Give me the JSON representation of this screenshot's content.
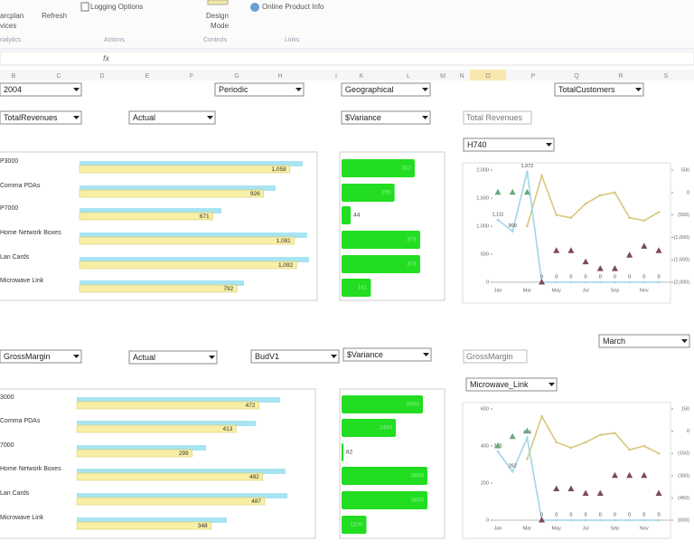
{
  "ribbon": {
    "items": [
      "arcplan",
      "vices",
      "Refresh",
      "Logging Options",
      "Design",
      "Mode",
      "Online Product Info"
    ],
    "groups": [
      "nalytics",
      "Actions",
      "Controls",
      "Links"
    ]
  },
  "formula_bar": {
    "fx": "fx"
  },
  "column_headers": [
    "B",
    "C",
    "D",
    "E",
    "F",
    "G",
    "H",
    "I",
    "K",
    "L",
    "M",
    "N",
    "O",
    "P",
    "Q",
    "R",
    "S"
  ],
  "panels": [
    {
      "dropdowns": [
        "2004",
        "Periodic",
        "Geographical",
        "TotalCustomers",
        "TotalRevenues",
        "Actual",
        "$Variance",
        "H740"
      ],
      "textbox": "Total Revenues",
      "rows": [
        {
          "label": "P3000",
          "value": 1058,
          "value_label": "1,058",
          "compare": 1123,
          "variance": 352
        },
        {
          "label": "Comma PDAs",
          "value": 926,
          "compare": 986,
          "variance": 255
        },
        {
          "label": "P7000",
          "value": 671,
          "compare": 714,
          "variance": 44
        },
        {
          "label": "Home Network Boxes",
          "value": 1081,
          "value_label": "1,081",
          "compare": 1145,
          "variance": 378
        },
        {
          "label": "Lan Cards",
          "value": 1092,
          "value_label": "1,092",
          "compare": 1155,
          "variance": 378
        },
        {
          "label": "Microwave Link",
          "value": 792,
          "compare": 827,
          "variance": 141
        }
      ],
      "chart": {
        "type": "line",
        "categories": [
          "Jan",
          null,
          "Mar",
          null,
          "May",
          null,
          "Jul",
          null,
          "Sep",
          null,
          "Nov",
          null
        ],
        "ylim": [
          0,
          2000
        ],
        "yticks": [
          {
            "value": 2000,
            "label": "2,000"
          },
          {
            "value": 1500,
            "label": "1,500"
          },
          {
            "value": 1000,
            "label": "1,000"
          },
          500,
          0
        ],
        "y2lim": [
          -2000,
          500
        ],
        "y2ticks": [
          500,
          0,
          {
            "value": -500,
            "label": "(500)"
          },
          {
            "value": -1000,
            "label": "(1,000)"
          },
          {
            "value": -1500,
            "label": "(1,500)"
          },
          {
            "value": -2000,
            "label": "(2,000)"
          }
        ],
        "series": [
          {
            "color": "#d8c77c",
            "values": [
              null,
              null,
              1000,
              1900,
              1200,
              1150,
              1400,
              1550,
              1600,
              1150,
              1100,
              1250
            ]
          },
          {
            "color": "#9fd6ea",
            "values": [
              1111,
              909,
              1972,
              0,
              0,
              0,
              0,
              0,
              0,
              0,
              0,
              0
            ],
            "value_labels": [
              "1,111",
              "909",
              "1,972",
              "0",
              "0",
              "0",
              "0",
              "0",
              "0",
              "0",
              "0",
              "0"
            ]
          },
          {
            "color": "#6aa87a",
            "marker": "triangle",
            "values": [
              1600,
              1600,
              1600,
              null,
              null,
              null,
              null,
              null,
              null,
              null,
              null,
              null
            ]
          },
          {
            "color": "#7a4a55",
            "marker": "triangle",
            "axis": "y2",
            "values": [
              null,
              null,
              null,
              -2000,
              -1300,
              -1300,
              -1550,
              -1700,
              -1700,
              -1400,
              -1200,
              -1300
            ]
          }
        ]
      }
    },
    {
      "dropdowns": [
        "GrossMargin",
        "Actual",
        "BudV1",
        "$Variance",
        "March",
        "Microwave_Link"
      ],
      "textbox": "GrossMargin",
      "rows": [
        {
          "label": "3000",
          "value": 472,
          "compare": 527,
          "variance": 3600
        },
        {
          "label": "Comma PDAs",
          "value": 413,
          "compare": 464,
          "variance": 2400
        },
        {
          "label": "7000",
          "value": 299,
          "compare": 335,
          "variance": 82
        },
        {
          "label": "Home Network Boxes",
          "value": 482,
          "compare": 541,
          "variance": 3800
        },
        {
          "label": "Lan Cards",
          "value": 487,
          "compare": 546,
          "variance": 3800
        },
        {
          "label": "Microwave Link",
          "value": 348,
          "compare": 389,
          "variance": 1100
        }
      ],
      "chart": {
        "type": "line",
        "categories": [
          "Jan",
          null,
          "Mar",
          null,
          "May",
          null,
          "Jul",
          null,
          "Sep",
          null,
          "Nov",
          null
        ],
        "ylim": [
          0,
          600
        ],
        "yticks": [
          600,
          400,
          200,
          0
        ],
        "y2lim": [
          -600,
          150
        ],
        "y2ticks": [
          150,
          0,
          {
            "value": -150,
            "label": "(150)"
          },
          {
            "value": -300,
            "label": "(300)"
          },
          {
            "value": -450,
            "label": "(450)"
          },
          {
            "value": -600,
            "label": "(600)"
          }
        ],
        "series": [
          {
            "color": "#d8c77c",
            "values": [
              null,
              null,
              330,
              560,
              420,
              390,
              420,
              460,
              470,
              380,
              400,
              360
            ]
          },
          {
            "color": "#9fd6ea",
            "values": [
              370,
              262,
              444,
              0,
              0,
              0,
              0,
              0,
              0,
              0,
              0,
              0
            ],
            "value_labels": [
              "370",
              "262",
              "444",
              "0",
              "0",
              "0",
              "0",
              "0",
              "0",
              "0",
              "0",
              "0"
            ]
          },
          {
            "color": "#6aa87a",
            "marker": "triangle",
            "values": [
              400,
              450,
              480,
              null,
              null,
              null,
              null,
              null,
              null,
              null,
              null,
              null
            ]
          },
          {
            "color": "#7a4a55",
            "marker": "triangle",
            "axis": "y2",
            "values": [
              null,
              null,
              null,
              -600,
              -390,
              -390,
              -420,
              -420,
              -300,
              -300,
              -300,
              -420
            ]
          }
        ]
      }
    }
  ]
}
